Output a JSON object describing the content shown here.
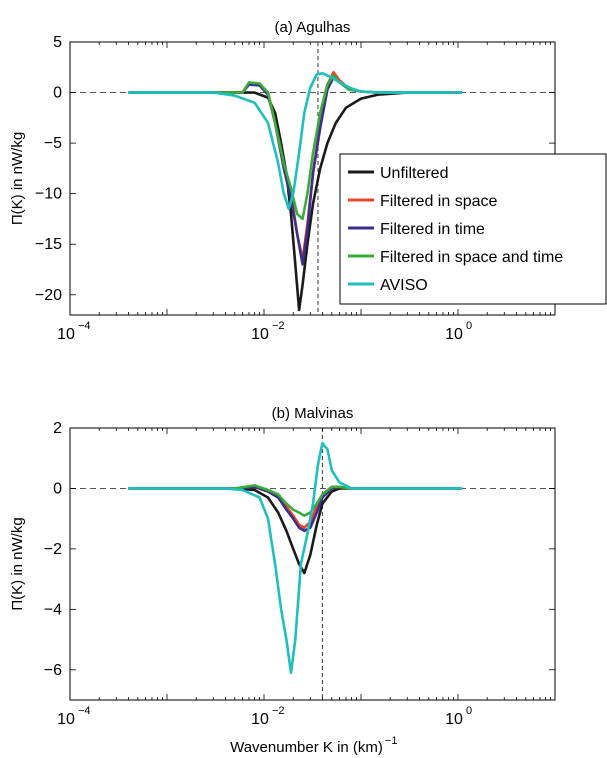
{
  "chart_data": [
    {
      "type": "line",
      "title": "(a) Agulhas",
      "xlabel": "",
      "ylabel": "Π(K) in nW/kg",
      "xscale": "log",
      "xlim": [
        0.0001,
        10
      ],
      "ylim": [
        -22,
        5
      ],
      "xticks": [
        {
          "value": 0.0001,
          "label": "10",
          "exp": "−4"
        },
        {
          "value": 0.01,
          "label": "10",
          "exp": "−2"
        },
        {
          "value": 1,
          "label": "10",
          "exp": "0"
        }
      ],
      "yticks": [
        {
          "value": 5,
          "label": "5"
        },
        {
          "value": 0,
          "label": "0"
        },
        {
          "value": -5,
          "label": "−5"
        },
        {
          "value": -10,
          "label": "−10"
        },
        {
          "value": -15,
          "label": "−15"
        },
        {
          "value": -20,
          "label": "−20"
        }
      ],
      "zero_line": true,
      "vertical_reference_x": 0.036,
      "legend": {
        "placement": "right",
        "entries": [
          "Unfiltered",
          "Filtered in space",
          "Filtered in time",
          "Filtered in space and time",
          "AVISO"
        ]
      },
      "series": [
        {
          "name": "Unfiltered",
          "color": "#1a1a1a",
          "x": [
            0.0004,
            0.005,
            0.008,
            0.011,
            0.013,
            0.015,
            0.017,
            0.019,
            0.021,
            0.023,
            0.025,
            0.028,
            0.032,
            0.038,
            0.045,
            0.055,
            0.07,
            0.1,
            0.15,
            0.3,
            0.6,
            1.1
          ],
          "y": [
            0,
            0,
            0,
            -0.5,
            -2,
            -5,
            -8,
            -12,
            -17,
            -21.5,
            -19,
            -15,
            -11,
            -7.5,
            -5,
            -3,
            -1.5,
            -0.6,
            -0.2,
            0,
            0,
            0
          ]
        },
        {
          "name": "Filtered in space",
          "color": "#e8442a",
          "x": [
            0.0004,
            0.006,
            0.007,
            0.009,
            0.011,
            0.013,
            0.016,
            0.019,
            0.022,
            0.025,
            0.028,
            0.032,
            0.038,
            0.045,
            0.052,
            0.06,
            0.075,
            0.1,
            0.15,
            0.3,
            0.6,
            1.1
          ],
          "y": [
            0,
            0,
            0.9,
            0.8,
            0,
            -3,
            -7,
            -10,
            -14,
            -16.5,
            -13,
            -8,
            -3,
            0.8,
            2,
            1.2,
            0.4,
            0.1,
            0,
            0,
            0,
            0
          ]
        },
        {
          "name": "Filtered in time",
          "color": "#3b2e8f",
          "x": [
            0.0004,
            0.006,
            0.007,
            0.009,
            0.011,
            0.013,
            0.016,
            0.019,
            0.022,
            0.025,
            0.028,
            0.032,
            0.038,
            0.045,
            0.052,
            0.06,
            0.075,
            0.1,
            0.15,
            0.3,
            0.6,
            1.1
          ],
          "y": [
            0,
            0,
            0.8,
            0.7,
            -0.2,
            -3,
            -7.5,
            -10.5,
            -14,
            -17,
            -13.5,
            -8,
            -3.5,
            0.3,
            1.5,
            1,
            0.3,
            0.1,
            0,
            0,
            0,
            0
          ]
        },
        {
          "name": "Filtered in space and time",
          "color": "#3aac3a",
          "x": [
            0.0004,
            0.006,
            0.007,
            0.009,
            0.011,
            0.013,
            0.016,
            0.019,
            0.022,
            0.025,
            0.028,
            0.032,
            0.038,
            0.045,
            0.052,
            0.06,
            0.075,
            0.1,
            0.15,
            0.3,
            0.6,
            1.1
          ],
          "y": [
            0,
            0,
            1,
            0.9,
            0,
            -3,
            -7,
            -9.5,
            -12,
            -12.5,
            -10,
            -6,
            -2,
            0.8,
            1.7,
            1,
            0.3,
            0.1,
            0,
            0,
            0,
            0
          ]
        },
        {
          "name": "AVISO",
          "color": "#1fbfbf",
          "x": [
            0.0004,
            0.003,
            0.005,
            0.008,
            0.011,
            0.014,
            0.016,
            0.018,
            0.02,
            0.023,
            0.026,
            0.03,
            0.035,
            0.04,
            0.05,
            0.06,
            0.08,
            0.1,
            0.15,
            0.3,
            0.6,
            1.1
          ],
          "y": [
            0,
            0,
            -0.3,
            -1,
            -3,
            -7,
            -10,
            -11.5,
            -10,
            -6,
            -2,
            0.5,
            1.8,
            1.9,
            1.5,
            1,
            0.4,
            0.1,
            0,
            0,
            0,
            0
          ]
        }
      ]
    },
    {
      "type": "line",
      "title": "(b) Malvinas",
      "xlabel": "Wavenumber K in (km)",
      "xlabel_sup": "−1",
      "ylabel": "Π(K) in nW/kg",
      "xscale": "log",
      "xlim": [
        0.0001,
        10
      ],
      "ylim": [
        -7,
        2
      ],
      "xticks": [
        {
          "value": 0.0001,
          "label": "10",
          "exp": "−4"
        },
        {
          "value": 0.01,
          "label": "10",
          "exp": "−2"
        },
        {
          "value": 1,
          "label": "10",
          "exp": "0"
        }
      ],
      "yticks": [
        {
          "value": 2,
          "label": "2"
        },
        {
          "value": 0,
          "label": "0"
        },
        {
          "value": -2,
          "label": "−2"
        },
        {
          "value": -4,
          "label": "−4"
        },
        {
          "value": -6,
          "label": "−6"
        }
      ],
      "zero_line": true,
      "vertical_reference_x": 0.04,
      "series": [
        {
          "name": "Unfiltered",
          "color": "#1a1a1a",
          "x": [
            0.0004,
            0.005,
            0.008,
            0.011,
            0.014,
            0.017,
            0.02,
            0.023,
            0.026,
            0.03,
            0.035,
            0.04,
            0.05,
            0.06,
            0.08,
            0.1,
            0.2,
            0.5,
            1.1
          ],
          "y": [
            0,
            0,
            -0.05,
            -0.3,
            -0.8,
            -1.4,
            -2,
            -2.5,
            -2.8,
            -2.2,
            -1.2,
            -0.5,
            -0.1,
            0,
            0,
            0,
            0,
            0,
            0
          ]
        },
        {
          "name": "Filtered in space",
          "color": "#e8442a",
          "x": [
            0.0004,
            0.005,
            0.008,
            0.011,
            0.014,
            0.017,
            0.02,
            0.023,
            0.026,
            0.03,
            0.035,
            0.04,
            0.05,
            0.06,
            0.08,
            0.1,
            0.2,
            0.5,
            1.1
          ],
          "y": [
            0,
            0,
            0.05,
            -0.1,
            -0.3,
            -0.6,
            -0.9,
            -1.2,
            -1.3,
            -1.1,
            -0.6,
            -0.2,
            0.05,
            0.05,
            0,
            0,
            0,
            0,
            0
          ]
        },
        {
          "name": "Filtered in time",
          "color": "#3b2e8f",
          "x": [
            0.0004,
            0.005,
            0.008,
            0.011,
            0.014,
            0.017,
            0.02,
            0.023,
            0.026,
            0.03,
            0.035,
            0.04,
            0.05,
            0.06,
            0.08,
            0.1,
            0.2,
            0.5,
            1.1
          ],
          "y": [
            0,
            0,
            0.05,
            -0.1,
            -0.3,
            -0.7,
            -1,
            -1.3,
            -1.4,
            -1.3,
            -0.8,
            -0.3,
            0,
            0.05,
            0,
            0,
            0,
            0,
            0
          ]
        },
        {
          "name": "Filtered in space and time",
          "color": "#3aac3a",
          "x": [
            0.0004,
            0.005,
            0.008,
            0.011,
            0.014,
            0.017,
            0.02,
            0.023,
            0.026,
            0.03,
            0.035,
            0.04,
            0.05,
            0.06,
            0.08,
            0.1,
            0.2,
            0.5,
            1.1
          ],
          "y": [
            0,
            0,
            0.1,
            -0.05,
            -0.2,
            -0.5,
            -0.7,
            -0.8,
            -0.9,
            -0.8,
            -0.5,
            -0.2,
            0.05,
            0.05,
            0,
            0,
            0,
            0,
            0
          ]
        },
        {
          "name": "AVISO",
          "color": "#1fbfbf",
          "x": [
            0.0004,
            0.004,
            0.006,
            0.009,
            0.011,
            0.013,
            0.015,
            0.017,
            0.019,
            0.021,
            0.024,
            0.028,
            0.032,
            0.036,
            0.04,
            0.045,
            0.05,
            0.06,
            0.08,
            0.1,
            0.2,
            0.5,
            1.1
          ],
          "y": [
            0,
            0,
            -0.05,
            -0.3,
            -1,
            -2.5,
            -4,
            -5,
            -6.1,
            -5,
            -2.5,
            -1.5,
            -0.5,
            0.8,
            1.5,
            1.3,
            0.6,
            0.2,
            0,
            0,
            0,
            0,
            0
          ]
        }
      ]
    }
  ]
}
